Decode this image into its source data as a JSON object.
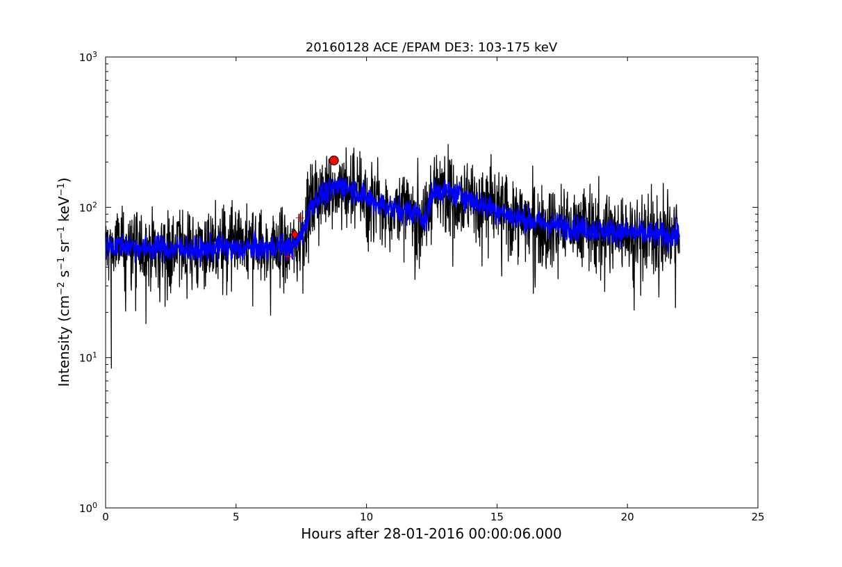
{
  "chart_data": {
    "type": "line",
    "title": "20160128 ACE /EPAM DE3: 103-175 keV",
    "xlabel": "Hours after 28-01-2016 00:00:06.000",
    "ylabel": {
      "base": "Intensity (cm",
      "exp1": "−2",
      "mid1": " s",
      "exp2": "−1",
      "mid2": " sr",
      "exp3": "−1",
      "mid3": " keV",
      "exp4": "−1",
      "end": ")"
    },
    "xlim": [
      0,
      25
    ],
    "ylim": [
      1,
      1000
    ],
    "yscale": "log",
    "grid": false,
    "xticks": [
      0,
      5,
      10,
      15,
      20,
      25
    ],
    "xtick_labels": [
      "0",
      "5",
      "10",
      "15",
      "20",
      "25"
    ],
    "yticks": [
      1,
      10,
      100,
      1000
    ],
    "ytick_labels": [
      {
        "base": "10",
        "exp": "0"
      },
      {
        "base": "10",
        "exp": "1"
      },
      {
        "base": "10",
        "exp": "2"
      },
      {
        "base": "10",
        "exp": "3"
      }
    ],
    "series": [
      {
        "color": "#000000",
        "description_kind": "raw",
        "x": [
          0.0,
          0.25,
          0.5,
          1.0,
          1.5,
          2.0,
          2.5,
          3.0,
          3.5,
          4.0,
          4.5,
          5.0,
          5.5,
          6.0,
          6.5,
          7.0,
          7.3,
          7.6,
          7.9,
          8.2,
          8.5,
          8.8,
          9.0,
          9.5,
          10.0,
          10.5,
          11.0,
          11.5,
          12.0,
          12.3,
          12.5,
          12.8,
          13.0,
          13.5,
          14.0,
          14.5,
          15.0,
          15.5,
          16.0,
          16.5,
          17.0,
          17.5,
          18.0,
          18.5,
          19.0,
          19.5,
          20.0,
          20.5,
          21.0,
          21.5,
          22.0
        ],
        "y": [
          55,
          52,
          56,
          55,
          53,
          55,
          52,
          54,
          51,
          53,
          55,
          52,
          54,
          53,
          55,
          54,
          57,
          70,
          105,
          118,
          125,
          135,
          140,
          132,
          115,
          105,
          98,
          95,
          92,
          78,
          125,
          130,
          128,
          122,
          112,
          103,
          96,
          88,
          84,
          79,
          77,
          75,
          73,
          72,
          70,
          69,
          68,
          67,
          66,
          65,
          65
        ],
        "noise": 0.5
      },
      {
        "color": "#0000ff",
        "description_kind": "smoothed",
        "x": [
          0.0,
          0.5,
          1.0,
          1.5,
          2.0,
          2.5,
          3.0,
          3.5,
          4.0,
          4.5,
          5.0,
          5.5,
          6.0,
          6.5,
          7.0,
          7.3,
          7.6,
          7.9,
          8.2,
          8.5,
          8.8,
          9.0,
          9.5,
          10.0,
          10.5,
          11.0,
          11.5,
          12.0,
          12.3,
          12.5,
          12.8,
          13.0,
          13.5,
          14.0,
          14.5,
          15.0,
          15.5,
          16.0,
          16.5,
          17.0,
          17.5,
          18.0,
          18.5,
          19.0,
          19.5,
          20.0,
          20.5,
          21.0,
          21.5,
          22.0
        ],
        "y": [
          55,
          56,
          55,
          53,
          55,
          52,
          54,
          51,
          53,
          55,
          52,
          54,
          53,
          55,
          54,
          57,
          70,
          105,
          118,
          125,
          135,
          140,
          132,
          115,
          105,
          98,
          95,
          92,
          80,
          125,
          130,
          128,
          122,
          112,
          103,
          96,
          88,
          84,
          79,
          77,
          75,
          73,
          72,
          70,
          69,
          68,
          67,
          66,
          65,
          65
        ],
        "noise": 0.16
      }
    ],
    "markers": [
      {
        "shape": "plus",
        "x": 7.0,
        "y": 47,
        "color": "#ff0000"
      },
      {
        "shape": "diamond",
        "x": 7.25,
        "y": 66,
        "color": "#ff0000"
      },
      {
        "shape": "plus",
        "x": 7.45,
        "y": 85,
        "color": "#ff0000"
      },
      {
        "shape": "circle",
        "x": 8.75,
        "y": 205,
        "color": "#ff0000"
      }
    ]
  }
}
